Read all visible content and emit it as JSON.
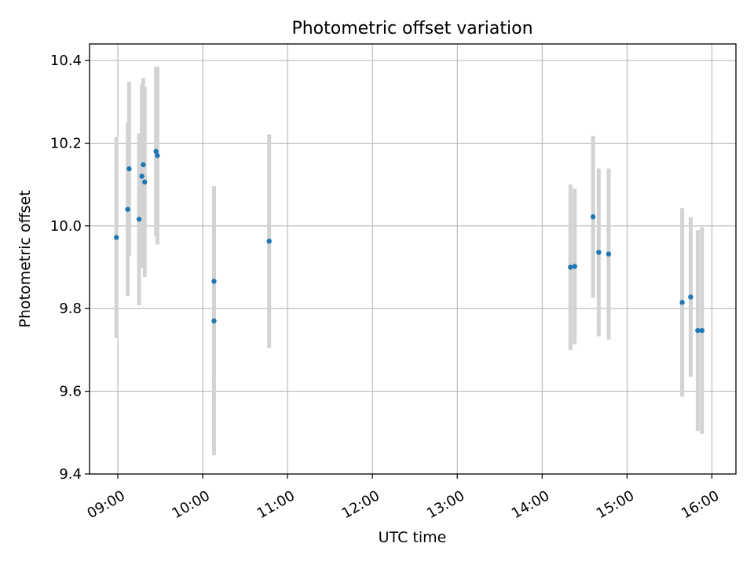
{
  "chart_data": {
    "type": "scatter",
    "title": "Photometric offset variation",
    "xlabel": "UTC time",
    "ylabel": "Photometric offset",
    "x_axis_kind": "time",
    "xlim": [
      "08:40",
      "16:17"
    ],
    "ylim": [
      9.4,
      10.44
    ],
    "yticks": [
      9.4,
      9.6,
      9.8,
      10.0,
      10.2,
      10.4
    ],
    "ytick_labels": [
      "9.4",
      "9.6",
      "9.8",
      "10.0",
      "10.2",
      "10.4"
    ],
    "xticks": [
      "09:00",
      "10:00",
      "11:00",
      "12:00",
      "13:00",
      "14:00",
      "15:00",
      "16:00"
    ],
    "grid": true,
    "legend": false,
    "colors": {
      "marker": "#1f77b4",
      "errorbar": "#d3d3d3",
      "grid": "#b0b0b0",
      "axes": "#000000"
    },
    "series": [
      {
        "marker": "dot",
        "points": [
          {
            "x": "08:59",
            "y": 9.972,
            "err": 0.243
          },
          {
            "x": "09:07",
            "y": 10.04,
            "err": 0.21
          },
          {
            "x": "09:08",
            "y": 10.138,
            "err": 0.21
          },
          {
            "x": "09:15",
            "y": 10.016,
            "err": 0.208
          },
          {
            "x": "09:17",
            "y": 10.12,
            "err": 0.222
          },
          {
            "x": "09:18",
            "y": 10.148,
            "err": 0.21
          },
          {
            "x": "09:19",
            "y": 10.106,
            "err": 0.23
          },
          {
            "x": "09:27",
            "y": 10.18,
            "err": 0.205
          },
          {
            "x": "09:28",
            "y": 10.17,
            "err": 0.215
          },
          {
            "x": "10:08",
            "y": 9.866,
            "err": 0.23
          },
          {
            "x": "10:08",
            "y": 9.77,
            "err": 0.325
          },
          {
            "x": "10:47",
            "y": 9.963,
            "err": 0.258
          },
          {
            "x": "14:20",
            "y": 9.9,
            "err": 0.2
          },
          {
            "x": "14:23",
            "y": 9.902,
            "err": 0.188
          },
          {
            "x": "14:36",
            "y": 10.022,
            "err": 0.196
          },
          {
            "x": "14:40",
            "y": 9.936,
            "err": 0.203
          },
          {
            "x": "14:47",
            "y": 9.932,
            "err": 0.207
          },
          {
            "x": "15:39",
            "y": 9.815,
            "err": 0.228
          },
          {
            "x": "15:45",
            "y": 9.828,
            "err": 0.193
          },
          {
            "x": "15:50",
            "y": 9.747,
            "err": 0.243
          },
          {
            "x": "15:53",
            "y": 9.747,
            "err": 0.25
          }
        ]
      }
    ]
  }
}
